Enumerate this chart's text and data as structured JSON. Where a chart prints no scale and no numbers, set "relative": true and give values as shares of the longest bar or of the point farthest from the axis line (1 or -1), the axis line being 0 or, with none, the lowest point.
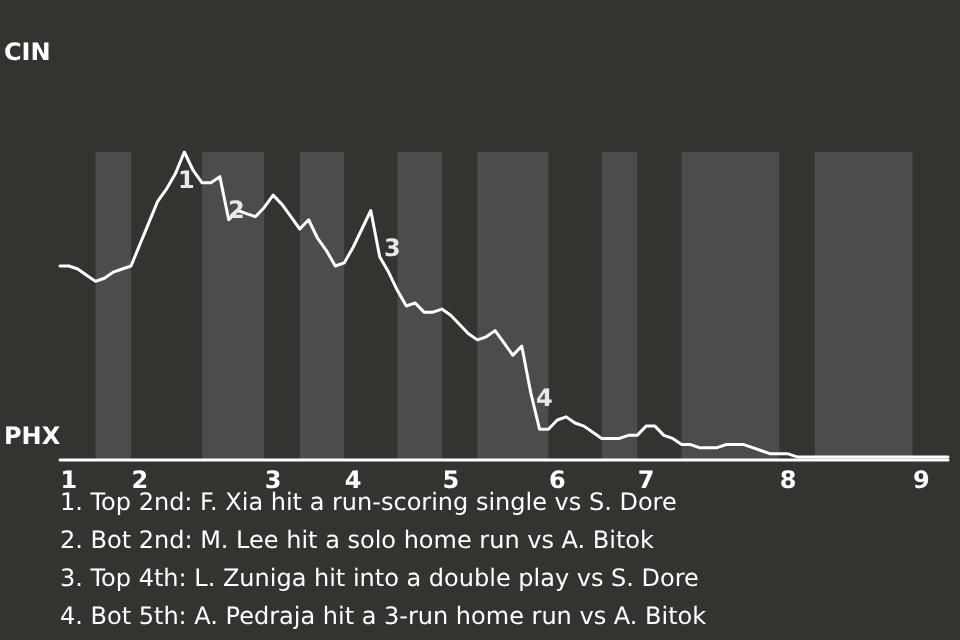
{
  "chart_data": {
    "type": "line",
    "relative": true,
    "marker": "none",
    "line_style": "solid",
    "categories": [
      null,
      "1",
      null,
      null,
      null,
      null,
      null,
      null,
      null,
      "2",
      null,
      null,
      null,
      null,
      null,
      null,
      null,
      null,
      null,
      null,
      null,
      null,
      null,
      null,
      "3",
      null,
      null,
      null,
      null,
      null,
      null,
      null,
      null,
      "4",
      null,
      null,
      null,
      null,
      null,
      null,
      null,
      null,
      null,
      null,
      "5",
      null,
      null,
      null,
      null,
      null,
      null,
      null,
      null,
      null,
      null,
      null,
      "6",
      null,
      null,
      null,
      null,
      null,
      null,
      null,
      null,
      null,
      "7",
      null,
      null,
      null,
      null,
      null,
      null,
      null,
      null,
      null,
      null,
      null,
      null,
      null,
      null,
      null,
      "8",
      null,
      null,
      null,
      null,
      null,
      null,
      null,
      null,
      null,
      null,
      null,
      null,
      null,
      null,
      "9",
      null,
      null,
      null
    ],
    "series": [
      {
        "color": "#ffffff",
        "values": [
          0.63,
          0.63,
          0.62,
          0.6,
          0.58,
          0.59,
          0.61,
          0.62,
          0.63,
          0.7,
          0.77,
          0.84,
          0.88,
          0.93,
          1,
          0.94,
          0.9,
          0.9,
          0.92,
          0.78,
          0.81,
          0.8,
          0.79,
          0.82,
          0.86,
          0.83,
          0.79,
          0.75,
          0.78,
          0.72,
          0.68,
          0.63,
          0.64,
          0.69,
          0.75,
          0.81,
          0.66,
          0.61,
          0.55,
          0.5,
          0.51,
          0.48,
          0.48,
          0.49,
          0.47,
          0.44,
          0.41,
          0.39,
          0.4,
          0.42,
          0.38,
          0.34,
          0.37,
          0.22,
          0.1,
          0.1,
          0.13,
          0.14,
          0.12,
          0.11,
          0.09,
          0.07,
          0.07,
          0.07,
          0.08,
          0.08,
          0.11,
          0.11,
          0.08,
          0.07,
          0.05,
          0.05,
          0.04,
          0.04,
          0.04,
          0.05,
          0.05,
          0.05,
          0.04,
          0.03,
          0.02,
          0.02,
          0.02,
          0.01,
          0.01,
          0.01,
          0.01,
          0.01,
          0.01,
          0.01,
          0.01,
          0.01,
          0.01,
          0.01,
          0.01,
          0.01,
          0.01,
          0.01,
          0.01,
          0.01,
          0.01
        ]
      }
    ],
    "annotations": [
      "CIN",
      "PHX",
      "1",
      "2",
      "3",
      "4",
      "1. Top 2nd: F. Xia hit a run-scoring single vs S. Dore",
      "2. Bot 2nd: M. Lee hit a solo home run vs A. Bitok",
      "3. Top 4th: L. Zuniga hit into a double play vs S. Dore",
      "4. Bot 5th: A. Pedraja hit a 3-run home run vs A. Bitok"
    ]
  }
}
